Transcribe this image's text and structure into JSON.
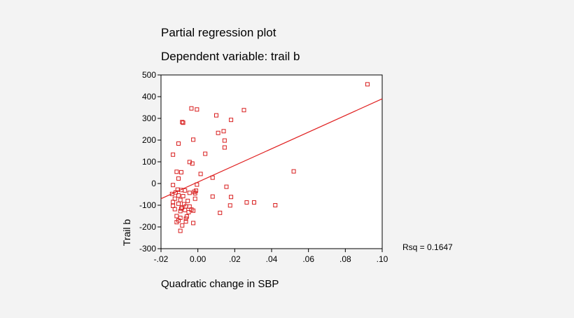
{
  "chart_data": {
    "type": "scatter",
    "title": "Partial regression plot",
    "subtitle": "Dependent variable: trail b",
    "xlabel": "Quadratic change in SBP",
    "ylabel": "Trail b",
    "xlim": [
      -0.02,
      0.1
    ],
    "ylim": [
      -300,
      500
    ],
    "xticks": [
      -0.02,
      0.0,
      0.02,
      0.04,
      0.06,
      0.08,
      0.1
    ],
    "xtick_labels": [
      "-.02",
      "0.00",
      ".02",
      ".04",
      ".06",
      ".08",
      ".10"
    ],
    "yticks": [
      -300,
      -200,
      -100,
      0,
      100,
      200,
      300,
      400,
      500
    ],
    "ytick_labels": [
      "-300",
      "-200",
      "-100",
      "0",
      "100",
      "200",
      "300",
      "400",
      "500"
    ],
    "grid": false,
    "annotation": "Rsq = 0.1647",
    "marker_color": "#d81e1e",
    "line_color": "#e02020",
    "plot_background": "#ffffff",
    "fit_line": {
      "x": [
        -0.02,
        0.1
      ],
      "y": [
        -70,
        390
      ]
    },
    "points": [
      {
        "x": 0.092,
        "y": 457
      },
      {
        "x": -0.0035,
        "y": 346
      },
      {
        "x": -0.0005,
        "y": 341
      },
      {
        "x": 0.025,
        "y": 338
      },
      {
        "x": 0.01,
        "y": 314
      },
      {
        "x": 0.018,
        "y": 293
      },
      {
        "x": -0.0085,
        "y": 283
      },
      {
        "x": -0.008,
        "y": 280
      },
      {
        "x": 0.014,
        "y": 241
      },
      {
        "x": 0.011,
        "y": 233
      },
      {
        "x": -0.0025,
        "y": 202
      },
      {
        "x": 0.0145,
        "y": 198
      },
      {
        "x": -0.0105,
        "y": 184
      },
      {
        "x": 0.0145,
        "y": 166
      },
      {
        "x": 0.004,
        "y": 137
      },
      {
        "x": -0.0135,
        "y": 133
      },
      {
        "x": -0.0045,
        "y": 99
      },
      {
        "x": -0.003,
        "y": 92
      },
      {
        "x": 0.052,
        "y": 56
      },
      {
        "x": -0.0115,
        "y": 54
      },
      {
        "x": -0.009,
        "y": 52
      },
      {
        "x": 0.0015,
        "y": 44
      },
      {
        "x": -0.0105,
        "y": 23
      },
      {
        "x": 0.008,
        "y": 27
      },
      {
        "x": -0.0135,
        "y": -7
      },
      {
        "x": -0.0005,
        "y": -5
      },
      {
        "x": 0.0155,
        "y": -15
      },
      {
        "x": -0.011,
        "y": -28
      },
      {
        "x": -0.009,
        "y": -30
      },
      {
        "x": -0.007,
        "y": -32
      },
      {
        "x": -0.001,
        "y": -33
      },
      {
        "x": -0.002,
        "y": -38
      },
      {
        "x": -0.012,
        "y": -41
      },
      {
        "x": -0.0045,
        "y": -43
      },
      {
        "x": -0.0015,
        "y": -45
      },
      {
        "x": -0.014,
        "y": -48
      },
      {
        "x": -0.0105,
        "y": -55
      },
      {
        "x": -0.008,
        "y": -58
      },
      {
        "x": 0.008,
        "y": -60
      },
      {
        "x": 0.018,
        "y": -62
      },
      {
        "x": -0.0125,
        "y": -70
      },
      {
        "x": -0.0015,
        "y": -70
      },
      {
        "x": -0.0095,
        "y": -76
      },
      {
        "x": -0.0055,
        "y": -80
      },
      {
        "x": -0.0135,
        "y": -85
      },
      {
        "x": 0.0265,
        "y": -87
      },
      {
        "x": 0.0305,
        "y": -87
      },
      {
        "x": -0.0105,
        "y": -93
      },
      {
        "x": -0.0075,
        "y": -95
      },
      {
        "x": 0.042,
        "y": -100
      },
      {
        "x": 0.0175,
        "y": -101
      },
      {
        "x": -0.0135,
        "y": -103
      },
      {
        "x": -0.0065,
        "y": -105
      },
      {
        "x": -0.0045,
        "y": -106
      },
      {
        "x": -0.0085,
        "y": -110
      },
      {
        "x": -0.009,
        "y": -115
      },
      {
        "x": -0.0125,
        "y": -118
      },
      {
        "x": -0.0035,
        "y": -120
      },
      {
        "x": -0.007,
        "y": -122
      },
      {
        "x": -0.0025,
        "y": -125
      },
      {
        "x": -0.0095,
        "y": -127
      },
      {
        "x": -0.005,
        "y": -132
      },
      {
        "x": 0.012,
        "y": -135
      },
      {
        "x": -0.0115,
        "y": -150
      },
      {
        "x": -0.006,
        "y": -152
      },
      {
        "x": -0.0095,
        "y": -158
      },
      {
        "x": -0.0065,
        "y": -162
      },
      {
        "x": -0.0105,
        "y": -170
      },
      {
        "x": -0.0065,
        "y": -175
      },
      {
        "x": -0.0115,
        "y": -178
      },
      {
        "x": -0.0025,
        "y": -182
      },
      {
        "x": -0.0085,
        "y": -193
      },
      {
        "x": -0.0095,
        "y": -218
      }
    ]
  }
}
